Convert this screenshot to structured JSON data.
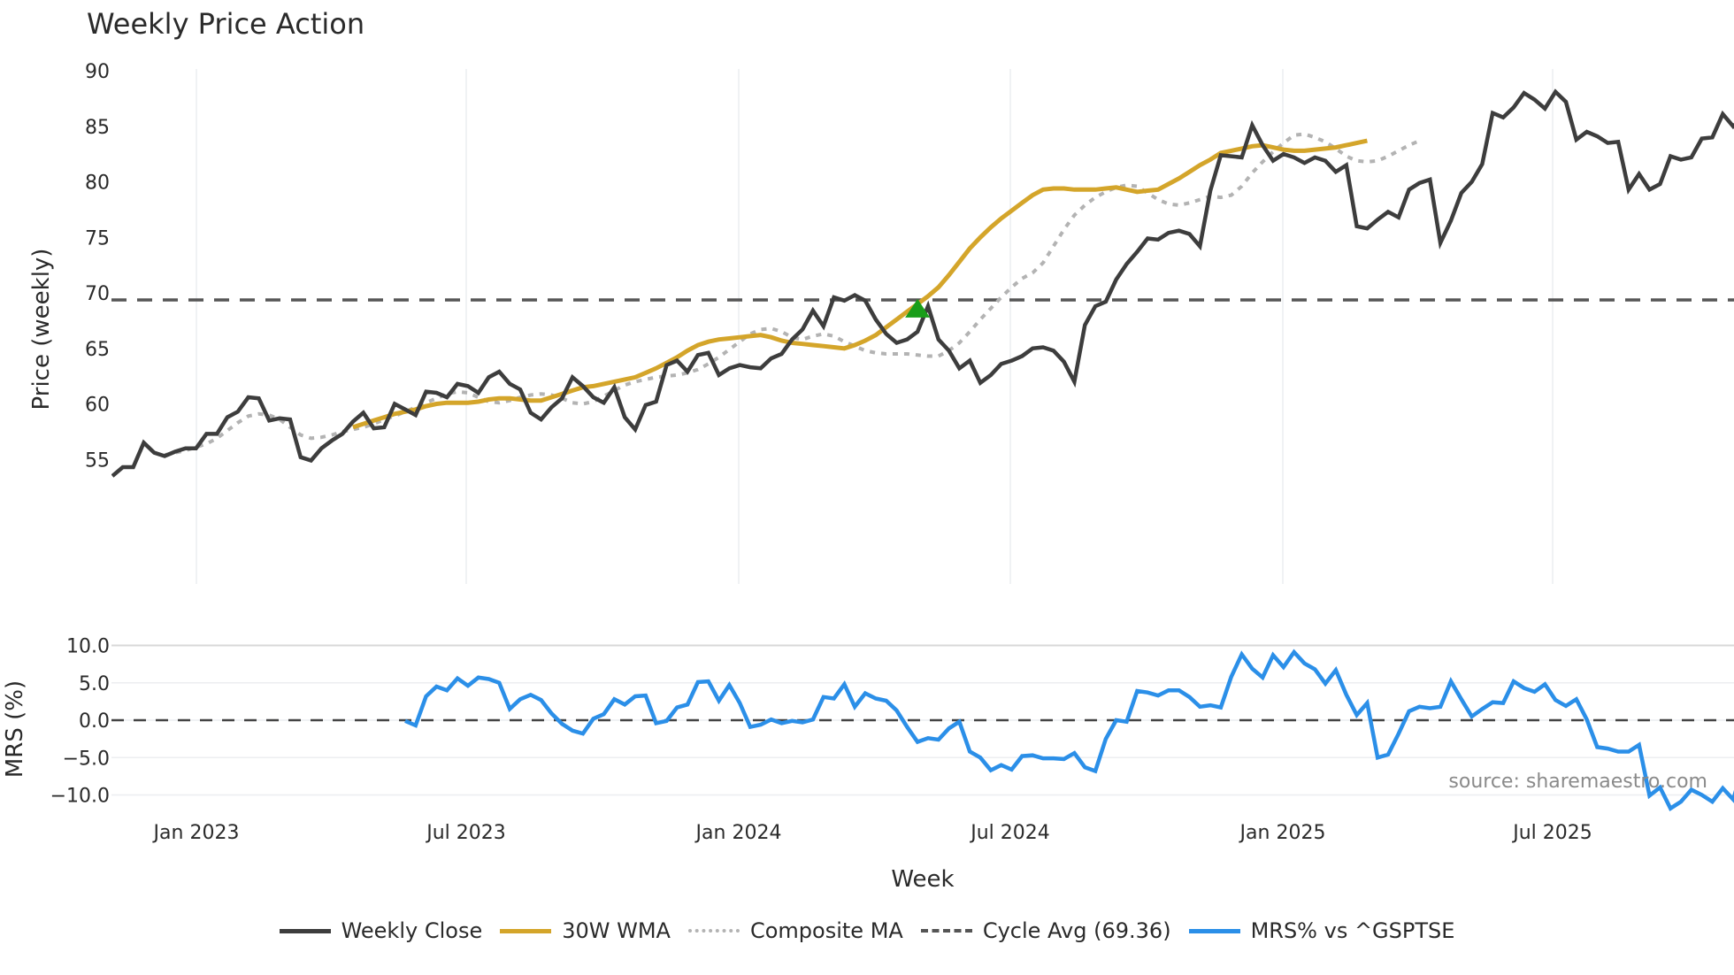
{
  "title": "Weekly Price Action",
  "legend": [
    {
      "label": "Weekly Close",
      "color": "#3d3d3d",
      "style": "solid"
    },
    {
      "label": "30W WMA",
      "color": "#d4a52a",
      "style": "solid"
    },
    {
      "label": "Composite MA",
      "color": "#b3b3b3",
      "style": "dotted"
    },
    {
      "label": "Cycle Avg (69.36)",
      "color": "#555555",
      "style": "dashed"
    },
    {
      "label": "MRS% vs ^GSPTSE",
      "color": "#2b8fe8",
      "style": "solid"
    }
  ],
  "source": "source: sharemaestro.com",
  "chart_data": [
    {
      "type": "line",
      "title": "Weekly Price Action",
      "xlabel": "",
      "ylabel": "Price (weekly)",
      "ylim": [
        52.5,
        90.5
      ],
      "yticks": [
        55,
        60,
        65,
        70,
        75,
        80,
        85,
        90
      ],
      "xticks": [
        "Jan 2023",
        "Jul 2023",
        "Jan 2024",
        "Jul 2024",
        "Jan 2025",
        "Jul 2025"
      ],
      "grid": "vertical",
      "cycle_avg": 69.36,
      "signal_marker": {
        "type": "triangle-up",
        "color": "#1a9e1a",
        "week_index": 77,
        "value": 68.5
      },
      "series": [
        {
          "name": "Weekly Close",
          "start_index": 0,
          "values": [
            53.5,
            54.3,
            54.3,
            56.5,
            55.6,
            55.3,
            55.7,
            56.0,
            56.0,
            57.3,
            57.3,
            58.8,
            59.3,
            60.6,
            60.5,
            58.5,
            58.7,
            58.6,
            55.2,
            54.9,
            56.0,
            56.7,
            57.3,
            58.4,
            59.2,
            57.8,
            57.9,
            60.0,
            59.5,
            59.0,
            61.1,
            61.0,
            60.6,
            61.8,
            61.6,
            61.0,
            62.4,
            62.9,
            61.8,
            61.3,
            59.2,
            58.6,
            59.7,
            60.5,
            62.4,
            61.6,
            60.6,
            60.1,
            61.5,
            58.8,
            57.7,
            59.9,
            60.2,
            63.5,
            63.9,
            62.9,
            64.4,
            64.6,
            62.6,
            63.2,
            63.5,
            63.3,
            63.2,
            64.1,
            64.5,
            65.8,
            66.7,
            68.4,
            67.0,
            69.6,
            69.3,
            69.8,
            69.3,
            67.6,
            66.3,
            65.5,
            65.8,
            66.5,
            68.8,
            65.8,
            64.8,
            63.2,
            63.9,
            61.9,
            62.6,
            63.6,
            63.9,
            64.3,
            65.0,
            65.1,
            64.8,
            63.8,
            62.0,
            67.1,
            68.8,
            69.2,
            71.2,
            72.6,
            73.7,
            74.9,
            74.8,
            75.4,
            75.6,
            75.3,
            74.2,
            79.2,
            82.4,
            82.3,
            82.2,
            85.1,
            83.3,
            81.9,
            82.5,
            82.2,
            81.7,
            82.2,
            81.9,
            80.9,
            81.5,
            76.0,
            75.8,
            76.6,
            77.3,
            76.8,
            79.3,
            79.9,
            80.2,
            74.5,
            76.5,
            79.0,
            80.0,
            81.6,
            86.2,
            85.8,
            86.7,
            88.0,
            87.4,
            86.6,
            88.1,
            87.2,
            83.8,
            84.5,
            84.1,
            83.5,
            83.6,
            79.3,
            80.7,
            79.3,
            79.8,
            82.3,
            82.0,
            82.2,
            83.9,
            84.0,
            86.1,
            85.0,
            85.9,
            85.4
          ]
        },
        {
          "name": "30W WMA",
          "start_index": 23,
          "values": [
            57.9,
            58.2,
            58.5,
            58.8,
            59.1,
            59.3,
            59.5,
            59.8,
            60.0,
            60.1,
            60.1,
            60.1,
            60.2,
            60.4,
            60.5,
            60.5,
            60.4,
            60.3,
            60.3,
            60.6,
            60.9,
            61.2,
            61.5,
            61.6,
            61.8,
            62.0,
            62.2,
            62.4,
            62.8,
            63.2,
            63.7,
            64.2,
            64.8,
            65.3,
            65.6,
            65.8,
            65.9,
            66.0,
            66.1,
            66.2,
            66.0,
            65.7,
            65.5,
            65.4,
            65.3,
            65.2,
            65.1,
            65.0,
            65.3,
            65.7,
            66.2,
            66.9,
            67.6,
            68.3,
            69.0,
            69.7,
            70.5,
            71.6,
            72.8,
            74.0,
            75.0,
            75.9,
            76.7,
            77.4,
            78.1,
            78.8,
            79.3,
            79.4,
            79.4,
            79.3,
            79.3,
            79.3,
            79.4,
            79.5,
            79.3,
            79.1,
            79.2,
            79.3,
            79.8,
            80.3,
            80.9,
            81.5,
            82.0,
            82.6,
            82.8,
            83.0,
            83.2,
            83.3,
            83.1,
            82.9,
            82.8,
            82.8,
            82.9,
            83.0,
            83.1,
            83.3,
            83.5,
            83.7
          ]
        },
        {
          "name": "Composite MA",
          "start_index": 5,
          "values": [
            55.4,
            55.6,
            55.8,
            56.1,
            56.4,
            56.9,
            57.6,
            58.3,
            58.9,
            59.1,
            59.0,
            58.6,
            57.9,
            57.2,
            56.9,
            57.0,
            57.2,
            57.5,
            57.7,
            57.9,
            58.2,
            58.6,
            58.9,
            59.3,
            59.7,
            60.1,
            60.5,
            60.9,
            61.1,
            61.0,
            60.6,
            60.2,
            60.1,
            60.3,
            60.6,
            60.8,
            60.9,
            60.8,
            60.5,
            60.1,
            60.0,
            60.2,
            60.7,
            61.2,
            61.7,
            62.0,
            62.2,
            62.4,
            62.5,
            62.6,
            62.8,
            63.1,
            63.6,
            64.2,
            64.9,
            65.6,
            66.3,
            66.7,
            66.8,
            66.5,
            66.0,
            65.8,
            66.1,
            66.3,
            66.1,
            65.6,
            65.2,
            64.8,
            64.6,
            64.5,
            64.5,
            64.5,
            64.4,
            64.3,
            64.3,
            64.8,
            65.5,
            66.5,
            67.6,
            68.6,
            69.6,
            70.5,
            71.3,
            71.8,
            72.7,
            74.2,
            75.7,
            77.0,
            77.9,
            78.6,
            79.1,
            79.5,
            79.7,
            79.6,
            79.0,
            78.4,
            78.0,
            77.9,
            78.1,
            78.4,
            78.7,
            78.6,
            78.8,
            79.6,
            80.8,
            81.8,
            82.7,
            83.5,
            84.2,
            84.3,
            84.0,
            83.6,
            83.0,
            82.3,
            81.9,
            81.8,
            81.9,
            82.3,
            82.8,
            83.3,
            83.7
          ]
        }
      ]
    },
    {
      "type": "line",
      "title": "",
      "xlabel": "Week",
      "ylabel": "MRS (%)",
      "ylim": [
        -12.5,
        11.5
      ],
      "yticks": [
        -10.0,
        -5.0,
        0.0,
        5.0,
        10.0
      ],
      "xticks": [
        "Jan 2023",
        "Jul 2023",
        "Jan 2024",
        "Jul 2024",
        "Jan 2025",
        "Jul 2025"
      ],
      "grid": "horizontal",
      "zero_line": 0.0,
      "series": [
        {
          "name": "MRS% vs ^GSPTSE",
          "start_index": 28,
          "values": [
            -0.1,
            -0.7,
            3.2,
            4.5,
            4.0,
            5.6,
            4.6,
            5.7,
            5.5,
            5.0,
            1.5,
            2.8,
            3.4,
            2.7,
            0.9,
            -0.5,
            -1.4,
            -1.8,
            0.2,
            0.8,
            2.8,
            2.1,
            3.2,
            3.3,
            -0.4,
            -0.1,
            1.7,
            2.1,
            5.1,
            5.2,
            2.6,
            4.7,
            2.3,
            -0.9,
            -0.6,
            0.1,
            -0.4,
            -0.1,
            -0.3,
            0.1,
            3.1,
            2.9,
            4.8,
            1.8,
            3.6,
            2.9,
            2.6,
            1.3,
            -0.9,
            -2.9,
            -2.4,
            -2.6,
            -1.1,
            -0.2,
            -4.2,
            -5.0,
            -6.7,
            -6.0,
            -6.6,
            -4.8,
            -4.7,
            -5.1,
            -5.1,
            -5.2,
            -4.4,
            -6.3,
            -6.8,
            -2.5,
            0.0,
            -0.2,
            3.9,
            3.7,
            3.3,
            4.0,
            4.0,
            3.1,
            1.8,
            2.0,
            1.7,
            5.8,
            8.8,
            6.9,
            5.7,
            8.7,
            7.1,
            9.1,
            7.6,
            6.8,
            4.9,
            6.7,
            3.4,
            0.7,
            2.3,
            -5.0,
            -4.6,
            -1.8,
            1.2,
            1.8,
            1.6,
            1.8,
            5.2,
            2.8,
            0.5,
            1.5,
            2.4,
            2.3,
            5.2,
            4.3,
            3.8,
            4.8,
            2.7,
            1.9,
            2.8,
            0.1,
            -3.6,
            -3.8,
            -4.2,
            -4.2,
            -3.3,
            -10.1,
            -9.0,
            -11.8,
            -10.9,
            -9.3,
            -10.0,
            -10.9,
            -9.1,
            -10.6,
            -6.0,
            -7.3,
            -6.9
          ]
        }
      ]
    }
  ]
}
